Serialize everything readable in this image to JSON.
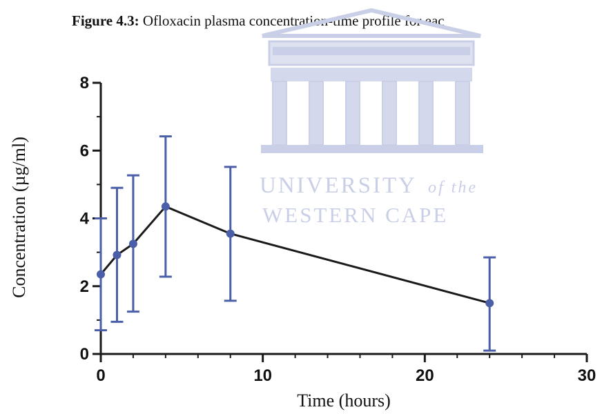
{
  "caption": {
    "label": "Figure 4.3:",
    "text": "Ofloxacin plasma concentration-time profile for eac"
  },
  "watermark": {
    "line1": "UNIVERSITY",
    "line1_italic": "of the",
    "line2": "WESTERN CAPE",
    "color": "#c9cfe6"
  },
  "chart_data": {
    "type": "line",
    "xlabel": "Time (hours)",
    "ylabel": "Concentration (µg/ml)",
    "xlim": [
      0,
      30
    ],
    "ylim": [
      0,
      8
    ],
    "xticks": [
      0,
      10,
      20,
      30
    ],
    "yticks": [
      0,
      2,
      4,
      6,
      8
    ],
    "grid": false,
    "line_color": "#1a1a1a",
    "marker_color": "#4a5fa8",
    "series": [
      {
        "x": [
          0,
          1,
          2,
          4,
          8,
          24
        ],
        "y": [
          2.35,
          2.92,
          3.25,
          4.35,
          3.55,
          1.5
        ],
        "err_low": [
          0.7,
          0.95,
          1.25,
          2.28,
          1.57,
          0.1
        ],
        "err_high": [
          4.0,
          4.9,
          5.27,
          6.42,
          5.52,
          2.85
        ]
      }
    ]
  }
}
